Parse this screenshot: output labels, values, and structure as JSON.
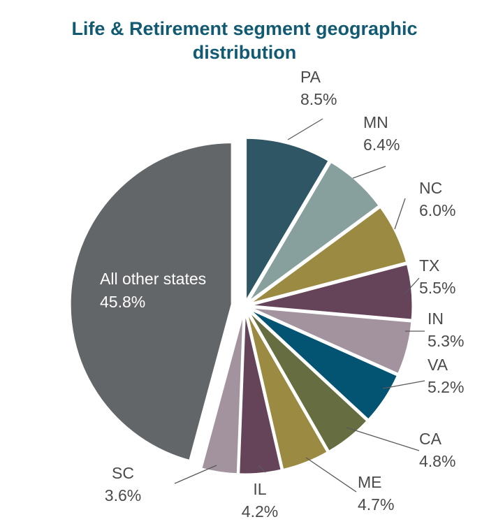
{
  "chart_data": {
    "type": "pie",
    "title_lines": [
      "Life & Retirement segment geographic",
      "distribution"
    ],
    "slices": [
      {
        "label": "PA",
        "value": 8.5,
        "value_text": "8.5%",
        "color": "#2e5665"
      },
      {
        "label": "MN",
        "value": 6.4,
        "value_text": "6.4%",
        "color": "#87a09d"
      },
      {
        "label": "NC",
        "value": 6.0,
        "value_text": "6.0%",
        "color": "#9b8a42"
      },
      {
        "label": "TX",
        "value": 5.5,
        "value_text": "5.5%",
        "color": "#65445a"
      },
      {
        "label": "IN",
        "value": 5.3,
        "value_text": "5.3%",
        "color": "#a2939f"
      },
      {
        "label": "VA",
        "value": 5.2,
        "value_text": "5.2%",
        "color": "#035372"
      },
      {
        "label": "CA",
        "value": 4.8,
        "value_text": "4.8%",
        "color": "#666d40"
      },
      {
        "label": "ME",
        "value": 4.7,
        "value_text": "4.7%",
        "color": "#9b8a42"
      },
      {
        "label": "IL",
        "value": 4.2,
        "value_text": "4.2%",
        "color": "#65445a"
      },
      {
        "label": "SC",
        "value": 3.6,
        "value_text": "3.6%",
        "color": "#a2939f"
      },
      {
        "label": "All other states",
        "value": 45.8,
        "value_text": "45.8%",
        "color": "#636669"
      }
    ]
  }
}
